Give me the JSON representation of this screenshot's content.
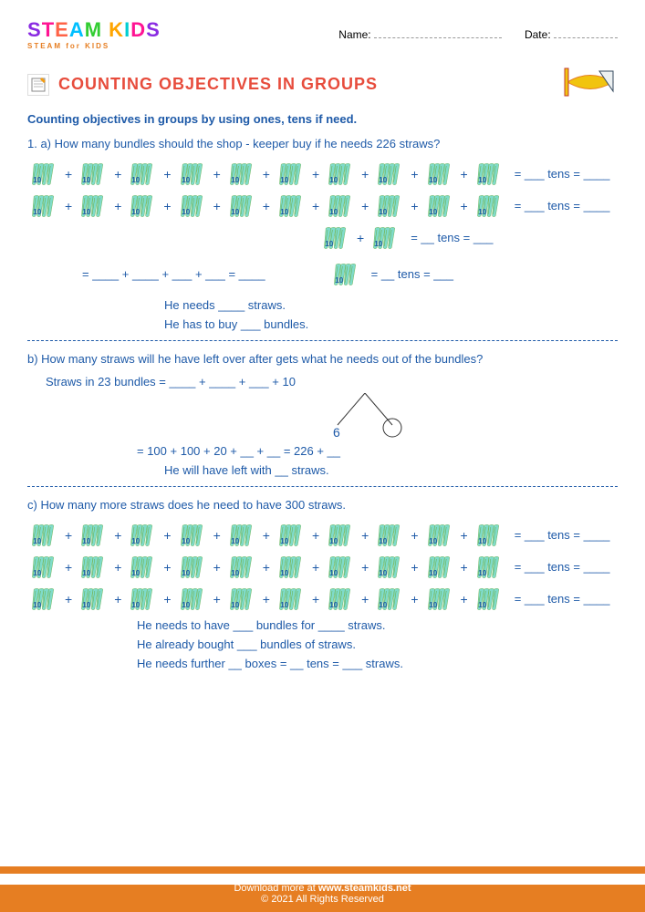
{
  "logo": {
    "text": "STEAM KIDS",
    "subtitle": "STEAM for KIDS"
  },
  "header": {
    "name_label": "Name:",
    "date_label": "Date:"
  },
  "title": "COUNTING OBJECTIVES IN GROUPS",
  "subtitle": "Counting objectives in groups by using ones, tens if need.",
  "straw_value": "10",
  "straw_colors": {
    "fill": "#7fdbca",
    "stripe": "#6ab04c",
    "text": "#1e5aa8"
  },
  "questions": {
    "a": {
      "prompt": "1. a)  How many bundles should the shop - keeper buy if he needs 226 straws?",
      "rows": [
        {
          "count": 10,
          "tail": "=  ___  tens  =  ____"
        },
        {
          "count": 10,
          "tail": "=  ___  tens  =  ____"
        }
      ],
      "two_tail": "=  __  tens  =  ___",
      "eq": "=   ____  +  ____  +  ___  +  ___  =  ____",
      "one_tail": "=  __  tens  =  ___",
      "needs": "He needs  ____  straws.",
      "buys": "He has to buy  ___  bundles."
    },
    "b": {
      "prompt": "b)   How many straws will he have left over after gets what he needs out of the bundles?",
      "line1": "Straws in 23 bundles  =  ____  +  ____  +  ___  +  10",
      "split_left": "6",
      "eq": "=  100 + 100 + 20 + __ + __ = 226 + __",
      "left": "He will have left with __ straws."
    },
    "c": {
      "prompt": "c)   How many more straws does he need to have 300 straws.",
      "rows": [
        {
          "count": 10,
          "tail": "=  ___  tens  =  ____"
        },
        {
          "count": 10,
          "tail": "=  ___  tens  =  ____"
        },
        {
          "count": 10,
          "tail": "=  ___  tens  =  ____"
        }
      ],
      "needs": "He needs to have  ___  bundles for  ____  straws.",
      "bought": "He already bought  ___  bundles of straws.",
      "further": "He needs further  __  boxes  =  __  tens  =  ___  straws."
    }
  },
  "footer": {
    "line1": "Download more at  ",
    "url": "www.steamkids.net",
    "line2": "© 2021 All Rights Reserved"
  }
}
